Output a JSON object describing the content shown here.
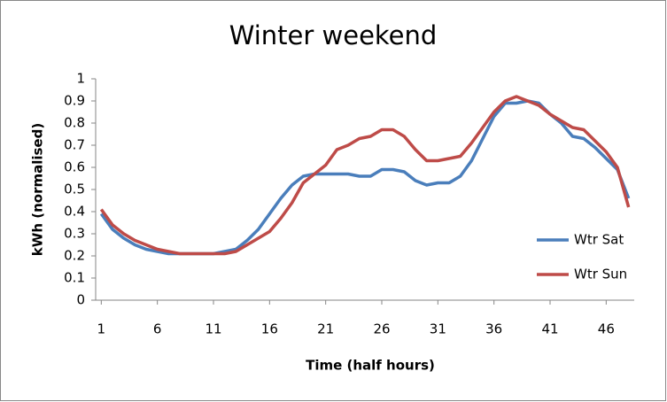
{
  "chart_data": {
    "type": "line",
    "title": "Winter weekend",
    "x_label": "Time (half hours)",
    "y_label": "kWh (normalised)",
    "x": [
      1,
      2,
      3,
      4,
      5,
      6,
      7,
      8,
      9,
      10,
      11,
      12,
      13,
      14,
      15,
      16,
      17,
      18,
      19,
      20,
      21,
      22,
      23,
      24,
      25,
      26,
      27,
      28,
      29,
      30,
      31,
      32,
      33,
      34,
      35,
      36,
      37,
      38,
      39,
      40,
      41,
      42,
      43,
      44,
      45,
      46,
      47,
      48
    ],
    "xlim": [
      0.5,
      48.5
    ],
    "xticks": [
      1,
      6,
      11,
      16,
      21,
      26,
      31,
      36,
      41,
      46
    ],
    "ylim": [
      0,
      1
    ],
    "yticks": [
      0,
      0.1,
      0.2,
      0.3,
      0.4,
      0.5,
      0.6,
      0.7,
      0.8,
      0.9,
      1
    ],
    "grid": false,
    "legend": "right",
    "series": [
      {
        "name": "Wtr Sat",
        "color": "#4a7ebb",
        "values": [
          0.39,
          0.32,
          0.28,
          0.25,
          0.23,
          0.22,
          0.21,
          0.21,
          0.21,
          0.21,
          0.21,
          0.22,
          0.23,
          0.27,
          0.32,
          0.39,
          0.46,
          0.52,
          0.56,
          0.57,
          0.57,
          0.57,
          0.57,
          0.56,
          0.56,
          0.59,
          0.59,
          0.58,
          0.54,
          0.52,
          0.53,
          0.53,
          0.56,
          0.63,
          0.73,
          0.83,
          0.89,
          0.89,
          0.9,
          0.89,
          0.84,
          0.8,
          0.74,
          0.73,
          0.69,
          0.64,
          0.59,
          0.46
        ]
      },
      {
        "name": "Wtr Sun",
        "color": "#be4b48",
        "values": [
          0.41,
          0.34,
          0.3,
          0.27,
          0.25,
          0.23,
          0.22,
          0.21,
          0.21,
          0.21,
          0.21,
          0.21,
          0.22,
          0.25,
          0.28,
          0.31,
          0.37,
          0.44,
          0.53,
          0.57,
          0.61,
          0.68,
          0.7,
          0.73,
          0.74,
          0.77,
          0.77,
          0.74,
          0.68,
          0.63,
          0.63,
          0.64,
          0.65,
          0.71,
          0.78,
          0.85,
          0.9,
          0.92,
          0.9,
          0.88,
          0.84,
          0.81,
          0.78,
          0.77,
          0.72,
          0.67,
          0.6,
          0.42
        ]
      }
    ]
  }
}
